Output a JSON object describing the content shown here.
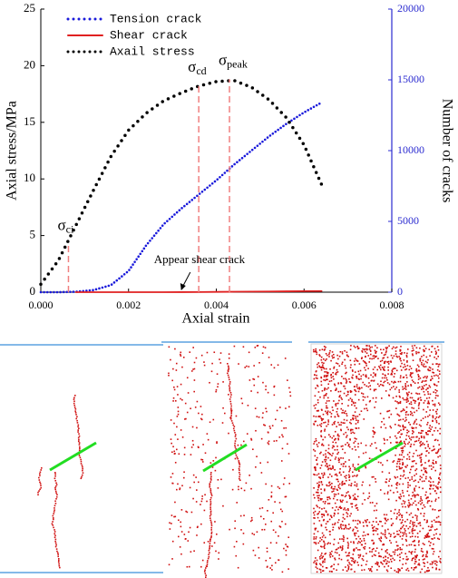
{
  "chart_data": {
    "type": "line",
    "x_label": "Axial strain",
    "y_label": "Axial stress/MPa",
    "y2_label": "Number of cracks",
    "x": [
      0,
      0.0004,
      0.0008,
      0.0012,
      0.0016,
      0.002,
      0.0024,
      0.0028,
      0.0032,
      0.0036,
      0.004,
      0.0044,
      0.0048,
      0.0052,
      0.0056,
      0.006,
      0.0064
    ],
    "series": [
      {
        "name": "Tension crack",
        "color": "#1a1adb",
        "style": "dotted",
        "axis": "y2",
        "values": [
          0,
          0,
          30,
          150,
          500,
          1500,
          3300,
          4800,
          5900,
          6900,
          7900,
          9000,
          10000,
          11000,
          11900,
          12700,
          13400
        ]
      },
      {
        "name": "Shear crack",
        "color": "#e02020",
        "style": "solid",
        "axis": "y2",
        "values": [
          null,
          null,
          0,
          0,
          0,
          0,
          0,
          0,
          5,
          10,
          20,
          30,
          40,
          50,
          60,
          70,
          80
        ]
      },
      {
        "name": "Axail stress",
        "color": "#000000",
        "style": "dotted",
        "axis": "y",
        "values": [
          0.7,
          2.8,
          5.9,
          9,
          12,
          14.3,
          15.8,
          16.9,
          17.6,
          18.2,
          18.6,
          18.7,
          18.1,
          17,
          15.4,
          13,
          9.5
        ]
      }
    ],
    "xlim": [
      0,
      0.008
    ],
    "xticks": [
      {
        "value": 0,
        "label": "0.000"
      },
      {
        "value": 0.002,
        "label": "0.002"
      },
      {
        "value": 0.004,
        "label": "0.004"
      },
      {
        "value": 0.006,
        "label": "0.006"
      },
      {
        "value": 0.008,
        "label": "0.008"
      }
    ],
    "ylim": [
      0,
      25
    ],
    "yticks": [
      0,
      5,
      10,
      15,
      20,
      25
    ],
    "y2lim": [
      0,
      20000
    ],
    "y2ticks": [
      0,
      5000,
      10000,
      15000,
      20000
    ],
    "y2_color": "#2b2bd0",
    "markers": [
      {
        "symbol": "σ",
        "sub": "ci",
        "x": 0.00063,
        "y": 4.2,
        "color": "#f08080"
      },
      {
        "symbol": "σ",
        "sub": "cd",
        "x": 0.0036,
        "y": 18.2,
        "color": "#f08080"
      },
      {
        "symbol": "σ",
        "sub": "peak",
        "x": 0.0043,
        "y": 18.8,
        "color": "#f08080"
      }
    ],
    "annotation": {
      "text": "Appear shear crack",
      "x": 0.0032,
      "y": 0
    },
    "legend": "upper left"
  }
}
